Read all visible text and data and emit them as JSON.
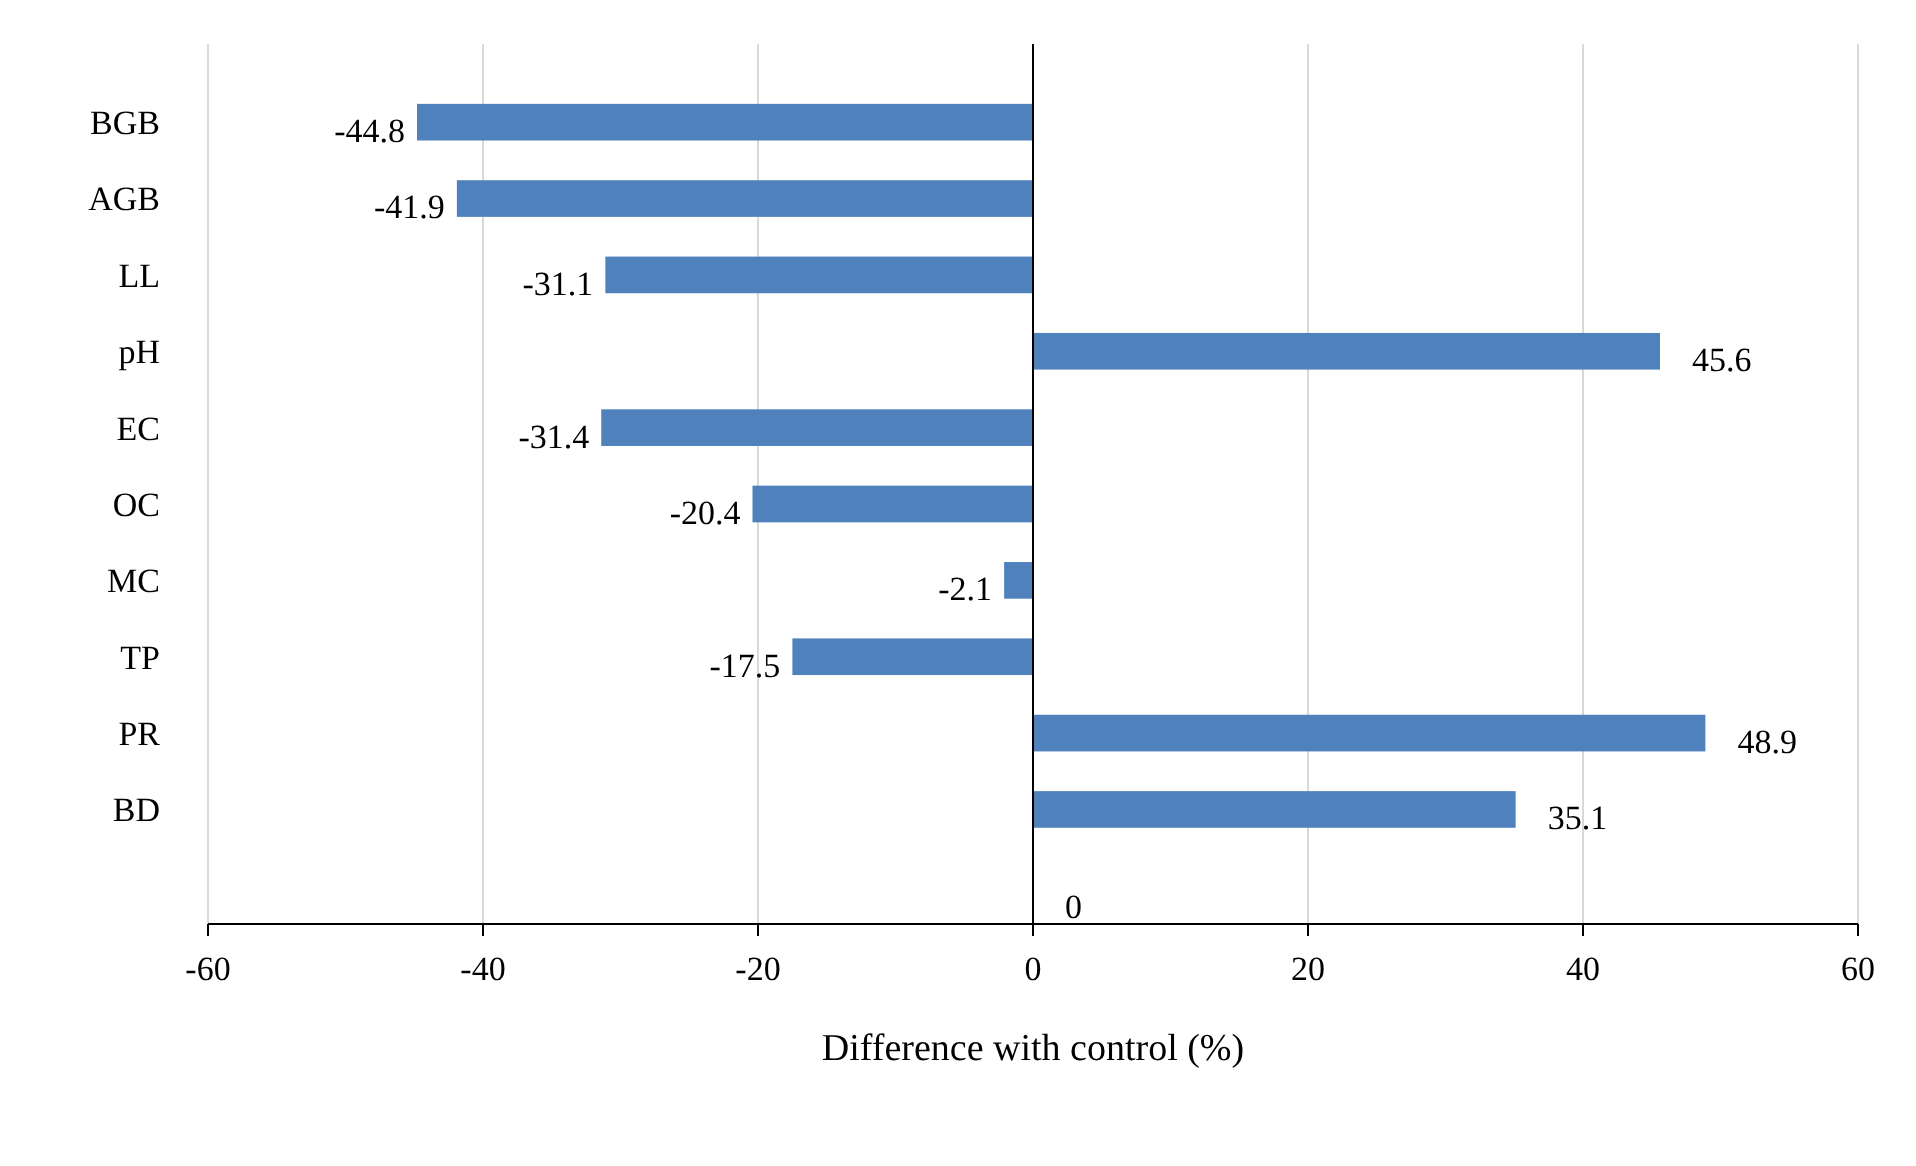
{
  "chart_data": {
    "type": "bar",
    "orientation": "horizontal",
    "xlabel": "Difference with control (%)",
    "categories": [
      "BGB",
      "AGB",
      "LL",
      "pH",
      "EC",
      "OC",
      "MC",
      "TP",
      "PR",
      "BD",
      null
    ],
    "values": [
      -44.8,
      -41.9,
      -31.1,
      45.6,
      -31.4,
      -20.4,
      -2.1,
      -17.5,
      48.9,
      35.1,
      0
    ],
    "color": "#4f81bd",
    "xlim": [
      -60,
      60
    ],
    "xticks": [
      -60,
      -40,
      -20,
      0,
      20,
      40,
      60
    ],
    "grid": "x",
    "data_labels": true
  }
}
